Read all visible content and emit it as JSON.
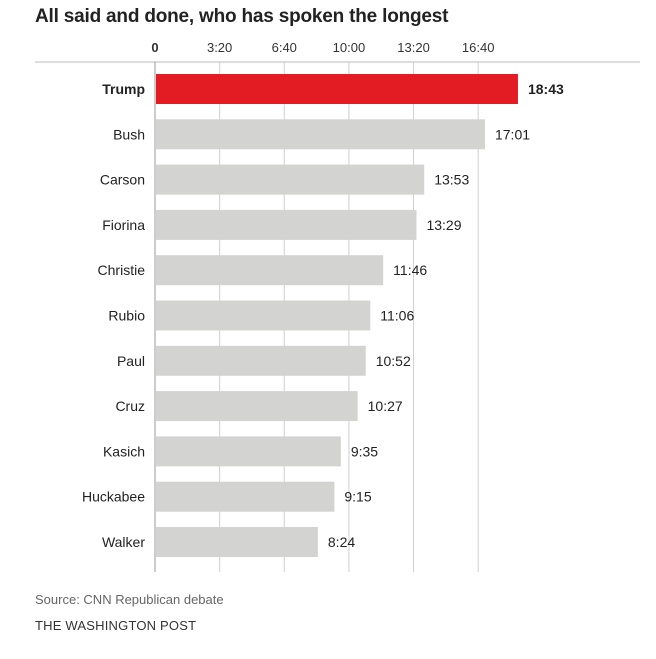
{
  "chart_data": {
    "type": "bar",
    "orientation": "horizontal",
    "title": "All said and done, who has spoken the longest",
    "categories": [
      "Trump",
      "Bush",
      "Carson",
      "Fiorina",
      "Christie",
      "Rubio",
      "Paul",
      "Cruz",
      "Kasich",
      "Huckabee",
      "Walker"
    ],
    "values_seconds": [
      1123,
      1021,
      833,
      809,
      706,
      666,
      652,
      627,
      575,
      555,
      504
    ],
    "value_labels": [
      "18:43",
      "17:01",
      "13:53",
      "13:29",
      "11:46",
      "11:06",
      "10:52",
      "10:27",
      "9:35",
      "9:15",
      "8:24"
    ],
    "x_ticks": [
      0,
      200,
      400,
      600,
      800,
      1000
    ],
    "x_tick_labels": [
      "0",
      "3:20",
      "6:40",
      "10:00",
      "13:20",
      "16:40"
    ],
    "xlim_seconds": [
      0,
      1200
    ],
    "grid": true,
    "highlight": "Trump",
    "colors": {
      "highlight": "#e31b23",
      "default": "#d3d3d1",
      "grid": "#cfcfcf"
    }
  },
  "footer": {
    "source": "Source: CNN Republican debate",
    "credit": "THE WASHINGTON POST"
  }
}
